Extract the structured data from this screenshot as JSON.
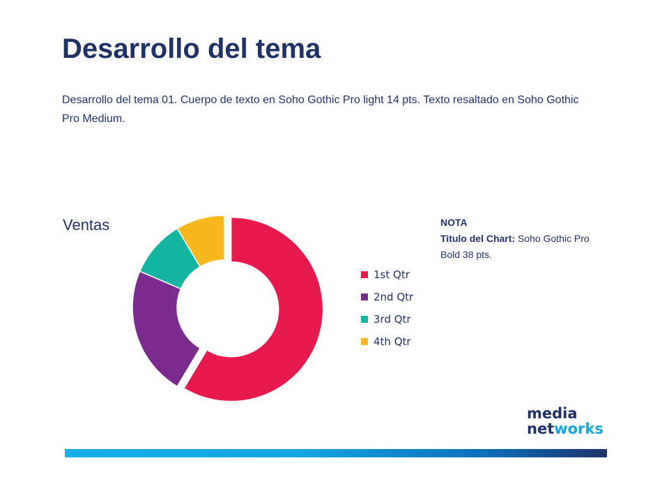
{
  "slide": {
    "title": "Desarrollo del tema",
    "body": "Desarrollo del tema 01. Cuerpo de texto en Soho Gothic Pro light 14 pts. Texto resaltado en Soho Gothic Pro Medium."
  },
  "note": {
    "heading": "NOTA",
    "label_bold": "Titulo del Chart:",
    "label_rest": " Soho Gothic Pro Bold  38 pts."
  },
  "logo": {
    "line1": "media",
    "line2_part1": "net",
    "line2_accent": "works"
  },
  "colors": {
    "title": "#1f3169",
    "q1": "#e8194d",
    "q2": "#7b2a8e",
    "q3": "#13b5a2",
    "q4": "#f8b81d",
    "bar_start": "#14aee6",
    "bar_end": "#1f3169"
  },
  "chart_data": {
    "type": "pie",
    "title": "Ventas",
    "categories": [
      "1st Qtr",
      "2nd Qtr",
      "3rd Qtr",
      "4th Qtr"
    ],
    "values": [
      8.2,
      3.2,
      1.4,
      1.2
    ],
    "colors": [
      "#e8194d",
      "#7b2a8e",
      "#13b5a2",
      "#f8b81d"
    ],
    "legend_position": "right"
  }
}
